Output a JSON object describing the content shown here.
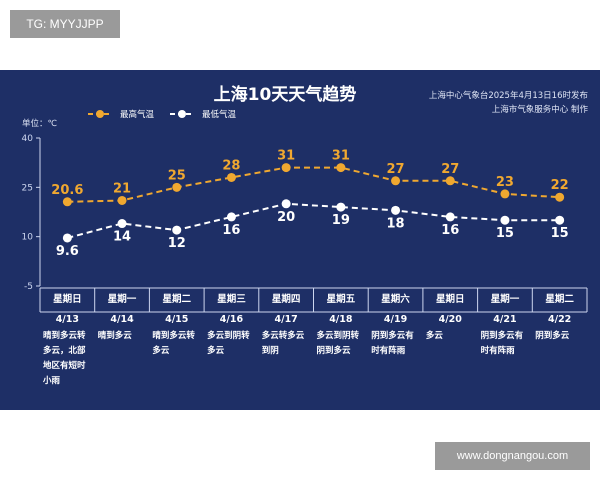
{
  "tag": "TG: MYYJJPP",
  "watermark": "www.dongnangou.com",
  "source": {
    "line1": "上海中心气象台2025年4月13日16时发布",
    "line2": "上海市气象服务中心 制作"
  },
  "colors": {
    "background": "#1e2f66",
    "high": "#f0a830",
    "low": "#ffffff",
    "axis": "#cdd6ef"
  },
  "chart_data": {
    "type": "line",
    "title": "上海10天天气趋势",
    "ylabel": "单位：℃",
    "ylim": [
      -5,
      40
    ],
    "yticks": [
      "-5",
      "10",
      "25",
      "40"
    ],
    "legend_position": "top-left",
    "categories": [
      {
        "weekday": "星期日",
        "date": "4/13",
        "weather": [
          "晴到多云转",
          "多云，北部",
          "地区有短时",
          "小雨"
        ]
      },
      {
        "weekday": "星期一",
        "date": "4/14",
        "weather": [
          "晴到多云"
        ]
      },
      {
        "weekday": "星期二",
        "date": "4/15",
        "weather": [
          "晴到多云转",
          "多云"
        ]
      },
      {
        "weekday": "星期三",
        "date": "4/16",
        "weather": [
          "多云到阴转",
          "多云"
        ]
      },
      {
        "weekday": "星期四",
        "date": "4/17",
        "weather": [
          "多云转多云",
          "到阴"
        ]
      },
      {
        "weekday": "星期五",
        "date": "4/18",
        "weather": [
          "多云到阴转",
          "阴到多云"
        ]
      },
      {
        "weekday": "星期六",
        "date": "4/19",
        "weather": [
          "阴到多云有",
          "时有阵雨"
        ]
      },
      {
        "weekday": "星期日",
        "date": "4/20",
        "weather": [
          "多云"
        ]
      },
      {
        "weekday": "星期一",
        "date": "4/21",
        "weather": [
          "阴到多云有",
          "时有阵雨"
        ]
      },
      {
        "weekday": "星期二",
        "date": "4/22",
        "weather": [
          "阴到多云"
        ]
      }
    ],
    "series": [
      {
        "name": "最高气温",
        "labels": [
          "20.6",
          "21",
          "25",
          "28",
          "31",
          "31",
          "27",
          "27",
          "23",
          "22"
        ],
        "values": [
          20.6,
          21,
          25,
          28,
          31,
          31,
          27,
          27,
          23,
          22
        ]
      },
      {
        "name": "最低气温",
        "labels": [
          "9.6",
          "14",
          "12",
          "16",
          "20",
          "19",
          "18",
          "16",
          "15",
          "15"
        ],
        "values": [
          9.6,
          14,
          12,
          16,
          20,
          19,
          18,
          16,
          15,
          15
        ]
      }
    ]
  }
}
